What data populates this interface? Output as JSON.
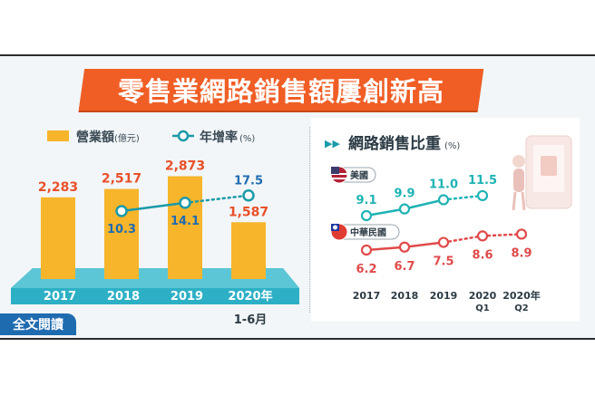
{
  "title": "零售業網路銷售額屢創新高",
  "read_more_label": "全文閱讀",
  "colors": {
    "bar": "#f7b52c",
    "bar_value": "#e8502a",
    "growth": "#1a9aa8",
    "usa": "#1fb3b4",
    "taiwan": "#e14a4a",
    "title_bg": "#f05e25",
    "platform": "#2db0c5"
  },
  "chart_data": [
    {
      "type": "bar",
      "legend": {
        "bar_label": "營業額",
        "bar_unit": "(億元)",
        "line_label": "年增率",
        "line_unit": "(%)"
      },
      "categories": [
        "2017",
        "2018",
        "2019",
        "2020年"
      ],
      "category_sub": [
        "",
        "",
        "",
        "1-6月"
      ],
      "series": [
        {
          "name": "營業額",
          "values": [
            2283,
            2517,
            2873,
            1587
          ],
          "value_labels": [
            "2,283",
            "2,517",
            "2,873",
            "1,587"
          ]
        },
        {
          "name": "年增率",
          "values": [
            null,
            10.3,
            14.1,
            17.5
          ],
          "value_labels": [
            "",
            "10.3",
            "14.1",
            "17.5"
          ]
        }
      ]
    },
    {
      "type": "line",
      "title": "網路銷售比重",
      "title_unit": "(%)",
      "categories": [
        "2017",
        "2018",
        "2019",
        "2020",
        "2020年"
      ],
      "category_sub": [
        "",
        "",
        "",
        "Q1",
        "Q2"
      ],
      "series": [
        {
          "name": "美國",
          "values": [
            9.1,
            9.9,
            11.0,
            11.5,
            null
          ],
          "value_labels": [
            "9.1",
            "9.9",
            "11.0",
            "11.5",
            ""
          ]
        },
        {
          "name": "中華民國",
          "values": [
            6.2,
            6.7,
            7.5,
            8.6,
            8.9
          ],
          "value_labels": [
            "6.2",
            "6.7",
            "7.5",
            "8.6",
            "8.9"
          ]
        }
      ]
    }
  ]
}
